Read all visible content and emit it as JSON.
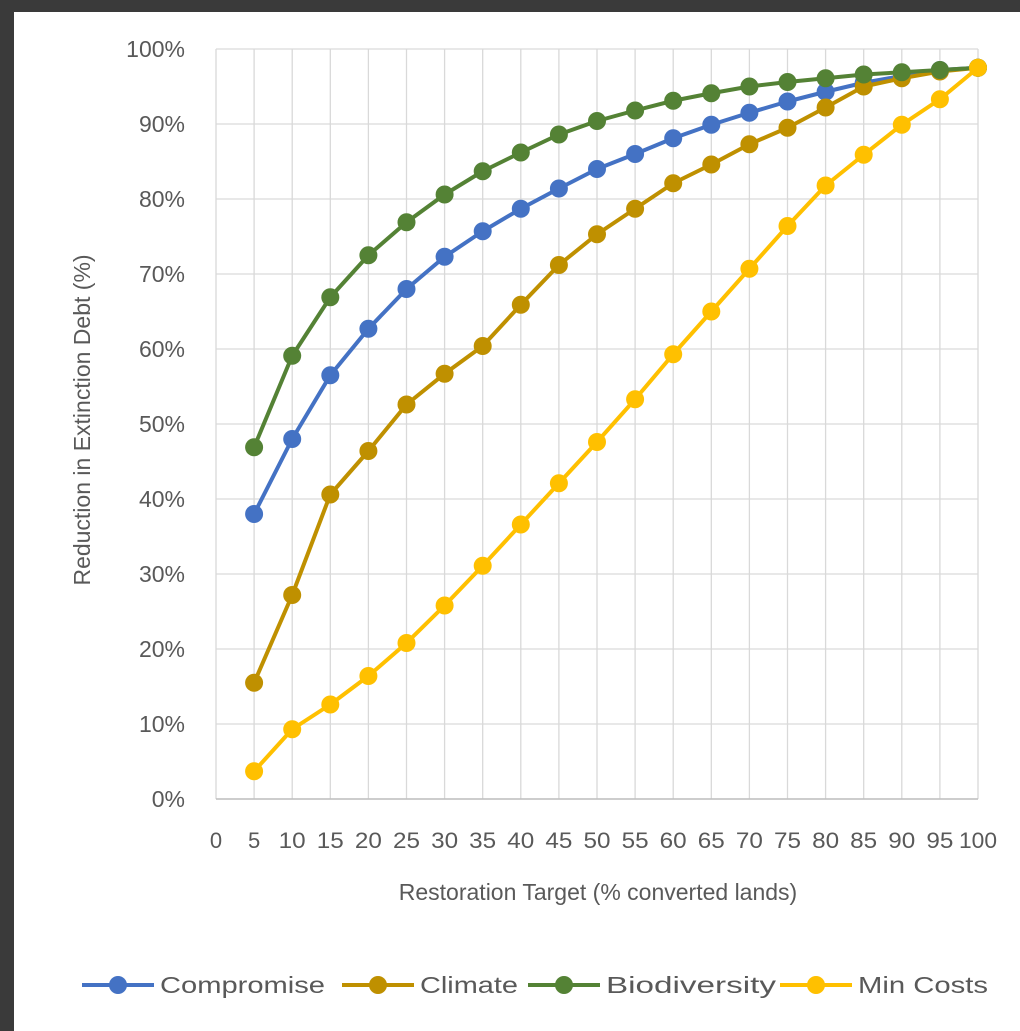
{
  "theme": {
    "background": "#ffffff",
    "border": "#3a3a3a",
    "grid": "#d9d9d9",
    "axis": "#bfbfbf",
    "text": "#595959"
  },
  "chart_data": {
    "type": "line",
    "xlabel": "Restoration Target (% converted lands)",
    "ylabel": "Reduction in Extinction Debt (%)",
    "x_ticks": [
      "0",
      "5",
      "10",
      "15",
      "20",
      "25",
      "30",
      "35",
      "40",
      "45",
      "50",
      "55",
      "60",
      "65",
      "70",
      "75",
      "80",
      "85",
      "90",
      "95",
      "100"
    ],
    "y_ticks": [
      "0%",
      "10%",
      "20%",
      "30%",
      "40%",
      "50%",
      "60%",
      "70%",
      "80%",
      "90%",
      "100%"
    ],
    "xlim": [
      0,
      100
    ],
    "ylim": [
      0,
      100
    ],
    "grid": true,
    "legend_position": "bottom",
    "x": [
      5,
      10,
      15,
      20,
      25,
      30,
      35,
      40,
      45,
      50,
      55,
      60,
      65,
      70,
      75,
      80,
      85,
      90,
      95,
      100
    ],
    "series": [
      {
        "name": "Compromise",
        "color": "#4472c4",
        "values": [
          38,
          48,
          56.5,
          62.7,
          68,
          72.3,
          75.7,
          78.7,
          81.4,
          84,
          86,
          88.1,
          89.9,
          91.5,
          93,
          94.3,
          95.5,
          96.4,
          97.2,
          97.5
        ]
      },
      {
        "name": "Climate",
        "color": "#bf9000",
        "values": [
          15.5,
          27.2,
          40.6,
          46.4,
          52.6,
          56.7,
          60.4,
          65.9,
          71.2,
          75.3,
          78.7,
          82.1,
          84.6,
          87.3,
          89.5,
          92.2,
          95,
          96.1,
          97,
          97.5
        ]
      },
      {
        "name": "Biodiversity",
        "color": "#548235",
        "values": [
          46.9,
          59.1,
          66.9,
          72.5,
          76.9,
          80.6,
          83.7,
          86.2,
          88.6,
          90.4,
          91.8,
          93.1,
          94.1,
          95,
          95.6,
          96.1,
          96.6,
          96.9,
          97.2,
          97.5
        ]
      },
      {
        "name": "Min Costs",
        "color": "#ffc000",
        "values": [
          3.7,
          9.3,
          12.6,
          16.4,
          20.8,
          25.8,
          31.1,
          36.6,
          42.1,
          47.6,
          53.3,
          59.3,
          65,
          70.7,
          76.4,
          81.8,
          85.9,
          89.9,
          93.3,
          97.5
        ]
      }
    ]
  }
}
